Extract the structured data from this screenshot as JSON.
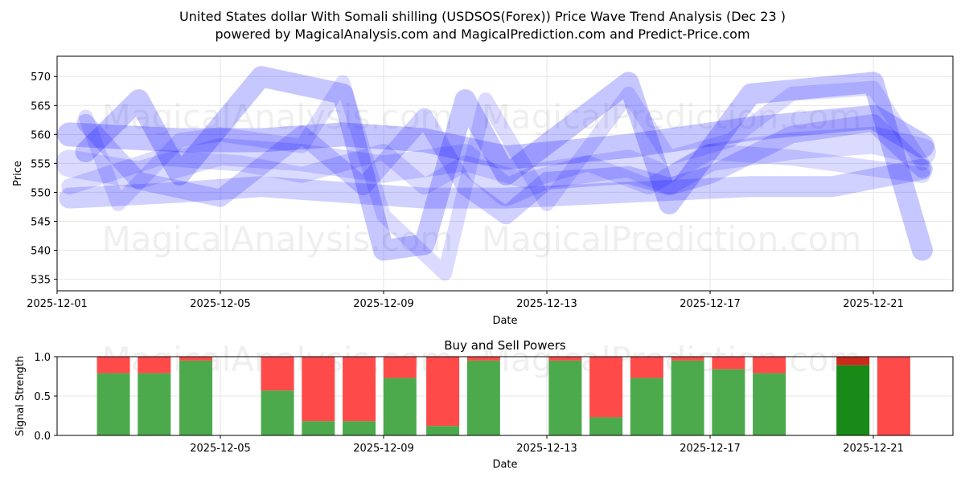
{
  "chart_data": [
    {
      "type": "line",
      "title": "United States dollar With Somali shilling (USDSOS(Forex)) Price Wave Trend Analysis (Dec 23 )",
      "subtitle": "powered by MagicalAnalysis.com and MagicalPrediction.com and Predict-Price.com",
      "xlabel": "Date",
      "ylabel": "Price",
      "xlim_days_from_2025_12_01": [
        0,
        21.95
      ],
      "ylim": [
        533,
        573.5
      ],
      "grid": true,
      "xticks": [
        "2025-12-01",
        "2025-12-05",
        "2025-12-09",
        "2025-12-13",
        "2025-12-17",
        "2025-12-21"
      ],
      "xtick_days": [
        0,
        4,
        8,
        12,
        16,
        20
      ],
      "yticks": [
        535,
        540,
        545,
        550,
        555,
        560,
        565,
        570
      ],
      "watermarks": [
        "MagicalAnalysis.com",
        "MagicalPrediction.com"
      ],
      "series_color": "#0000ff",
      "series": [
        {
          "name": "wave-1",
          "x": [
            0.3,
            2,
            4,
            6,
            7,
            8,
            9,
            10,
            11,
            12,
            14,
            15,
            16,
            18,
            20,
            21.2
          ],
          "y": [
            555,
            553,
            557,
            556,
            555,
            554,
            555,
            556,
            550,
            553,
            555,
            552,
            556,
            558,
            559,
            557
          ]
        },
        {
          "name": "wave-2",
          "x": [
            0.3,
            3,
            5,
            7,
            9,
            11,
            14,
            17,
            19,
            21.2
          ],
          "y": [
            549,
            550,
            551,
            550,
            549,
            549,
            550,
            551,
            551,
            554
          ]
        },
        {
          "name": "wave-3",
          "x": [
            0.3,
            3,
            5,
            7,
            9,
            11,
            14,
            17,
            20,
            21.2
          ],
          "y": [
            560,
            559,
            559,
            560,
            559,
            556,
            558,
            561,
            563,
            558
          ]
        },
        {
          "name": "wave-4",
          "x": [
            0.7,
            1.5,
            3,
            4,
            6,
            7,
            8,
            9.5,
            10.5,
            12,
            14,
            15,
            16.5,
            18,
            20,
            21.2
          ],
          "y": [
            563,
            548,
            559,
            560,
            558,
            569,
            546,
            536,
            566,
            548,
            567,
            556,
            559,
            567,
            568,
            555
          ]
        },
        {
          "name": "wave-5",
          "x": [
            0.7,
            2,
            4,
            6,
            7.5,
            9,
            10,
            11,
            12,
            14,
            15,
            16,
            18,
            20,
            21.2
          ],
          "y": [
            562,
            552,
            549,
            560,
            551,
            563,
            551,
            546,
            552,
            553,
            551,
            553,
            560,
            562,
            554
          ]
        },
        {
          "name": "wave-6",
          "x": [
            0.7,
            2,
            3,
            5,
            7,
            8,
            9,
            10,
            11,
            14,
            15,
            17,
            20,
            21.2
          ],
          "y": [
            557,
            566,
            553,
            570,
            567,
            540,
            541,
            566,
            553,
            569,
            548,
            567,
            569,
            540
          ]
        },
        {
          "name": "wave-7",
          "x": [
            0.3,
            2.5,
            4.5,
            6,
            8,
            9,
            10,
            11.5,
            13,
            14.5,
            16,
            18,
            21.2
          ],
          "y": [
            551,
            556,
            555,
            553,
            557,
            551,
            555,
            552,
            555,
            551,
            557,
            556,
            553
          ]
        }
      ]
    },
    {
      "type": "bar",
      "title": "Buy and Sell Powers",
      "xlabel": "Date",
      "ylabel": "Signal Strength",
      "ylim": [
        0,
        1
      ],
      "yticks": [
        "0.0",
        "0.5",
        "1.0"
      ],
      "xticks": [
        "2025-12-05",
        "2025-12-09",
        "2025-12-13",
        "2025-12-17",
        "2025-12-21"
      ],
      "xtick_days": [
        4,
        8,
        12,
        16,
        20
      ],
      "bar_days": [
        1.38,
        2.38,
        3.4,
        5.4,
        6.4,
        7.4,
        8.4,
        9.45,
        10.45,
        12.45,
        13.45,
        14.45,
        15.45,
        16.45,
        17.45,
        19.5,
        20.5
      ],
      "buy": [
        0.79,
        0.79,
        0.95,
        0.57,
        0.18,
        0.18,
        0.73,
        0.12,
        0.95,
        0.95,
        0.23,
        0.73,
        0.95,
        0.84,
        0.79,
        0.89,
        0
      ],
      "highlight_index": 15,
      "colors": {
        "buy": "#4caa4c",
        "sell": "#ff4a4a",
        "buy_highlight": "#178a17",
        "sell_highlight": "#cc2a1a"
      }
    }
  ]
}
